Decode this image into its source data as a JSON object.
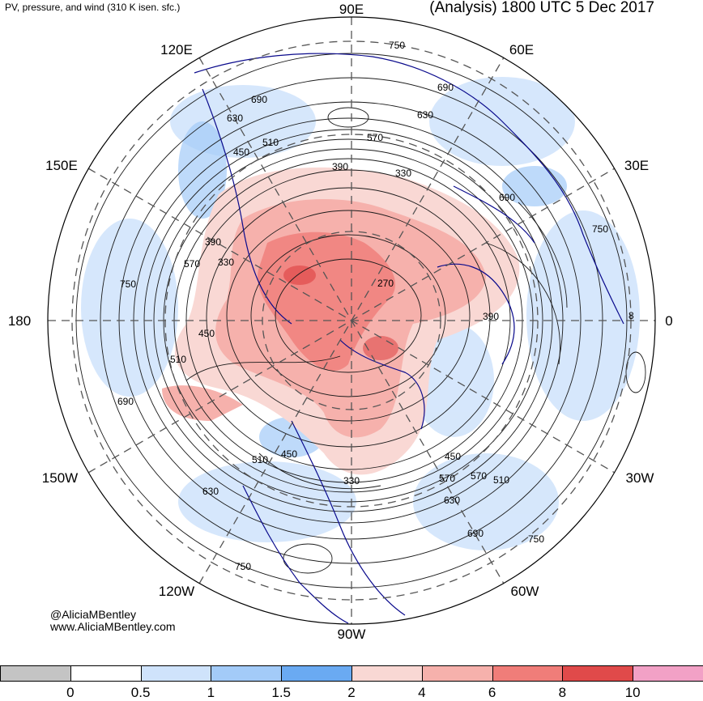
{
  "header": {
    "title_left": "PV, pressure, and wind (310 K isen. sfc.)",
    "title_right": "(Analysis) 1800 UTC 5 Dec 2017"
  },
  "longitude_labels": {
    "n90e": "90E",
    "n120e": "120E",
    "n60e": "60E",
    "n150e": "150E",
    "n30e": "30E",
    "n180": "180",
    "n0": "0",
    "n150w": "150W",
    "n30w": "30W",
    "n120w": "120W",
    "n60w": "60W",
    "n90w": "90W"
  },
  "contour_labels": [
    "750",
    "690",
    "630",
    "570",
    "510",
    "450",
    "390",
    "330",
    "270",
    "750",
    "690",
    "630",
    "570",
    "510",
    "450",
    "390",
    "330",
    "510",
    "450",
    "570",
    "630",
    "690",
    "750",
    "750",
    "690",
    "630",
    "570",
    "510",
    "450",
    "390",
    "330",
    "8",
    "690",
    "750"
  ],
  "credit": {
    "handle": "@AliciaMBentley",
    "website": "www.AliciaMBentley.com"
  },
  "colorbar": {
    "colors": [
      "#c4c4c4",
      "#ffffff",
      "#cfe3fb",
      "#a3cbf8",
      "#6aaaf2",
      "#f9d8d4",
      "#f6b1ac",
      "#f07d79",
      "#e04a4a",
      "#f2a1c6"
    ],
    "ticks": [
      "0",
      "0.5",
      "1",
      "1.5",
      "2",
      "4",
      "6",
      "8",
      "10"
    ]
  },
  "colors": {
    "land_outline": "#0a0a8c",
    "contour": "#1a1a1a",
    "pv_positive": "#f6b1ac",
    "pv_low": "#cfe3fb"
  }
}
